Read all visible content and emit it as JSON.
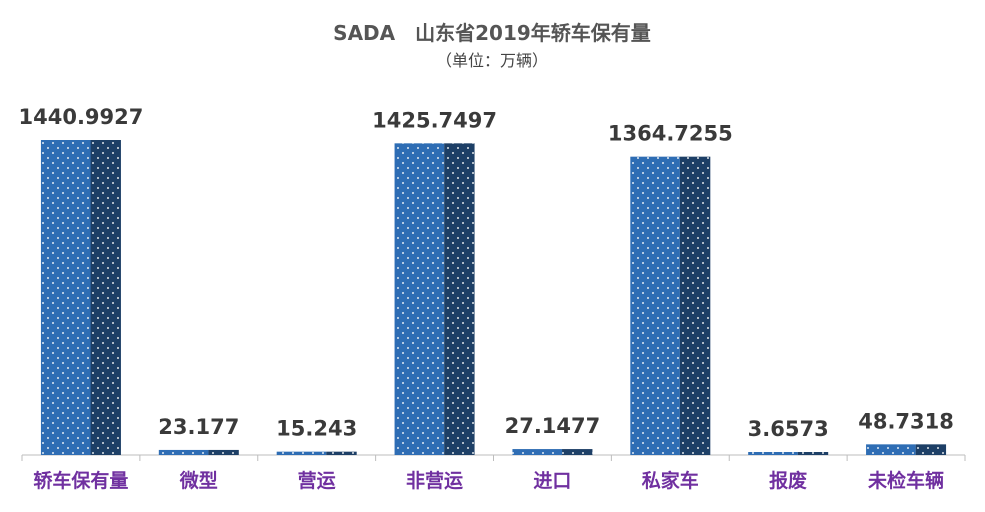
{
  "chart_data": {
    "type": "bar",
    "title": "SADA　山东省2019年轿车保有量",
    "subtitle": "（单位：万辆）",
    "xlabel": "",
    "ylabel": "",
    "categories": [
      "轿车保有量",
      "微型",
      "营运",
      "非营运",
      "进口",
      "私家车",
      "报废",
      "未检车辆"
    ],
    "values": [
      1440.9927,
      23.177,
      15.243,
      1425.7497,
      27.1477,
      1364.7255,
      3.6573,
      48.7318
    ],
    "value_labels": [
      "1440.9927",
      "23.177",
      "15.243",
      "1425.7497",
      "27.1477",
      "1364.7255",
      "3.6573",
      "48.7318"
    ],
    "ylim": [
      0,
      1440.9927
    ],
    "grid": false,
    "legend": "none",
    "colors": {
      "bar": "#2e6db4",
      "bar_dark": "#1d3f66",
      "dot": "#ffffff",
      "category_text": "#7030a0",
      "value_text": "#3a3a3a",
      "title_text": "#555555",
      "axis": "#bdbdbd"
    }
  }
}
